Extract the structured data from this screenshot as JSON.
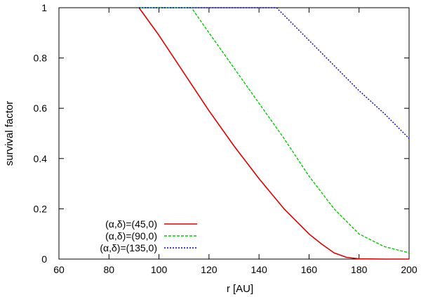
{
  "chart_data": {
    "type": "line",
    "title": "",
    "xlabel": "r [AU]",
    "ylabel": "survival factor",
    "xlim": [
      60,
      200
    ],
    "ylim": [
      0,
      1
    ],
    "xticks": [
      60,
      80,
      100,
      120,
      140,
      160,
      180,
      200
    ],
    "yticks": [
      0,
      0.2,
      0.4,
      0.6,
      0.8,
      1
    ],
    "ytick_labels": [
      "0",
      "0.2",
      "0.4",
      "0.6",
      "0.8",
      "1"
    ],
    "grid": false,
    "legend_position": "bottom-left",
    "series": [
      {
        "name": "(α,δ)=(45,0)",
        "color": "#e00000",
        "dash": "solid",
        "points": [
          [
            92,
            1
          ],
          [
            100,
            0.89
          ],
          [
            110,
            0.74
          ],
          [
            120,
            0.59
          ],
          [
            130,
            0.45
          ],
          [
            140,
            0.32
          ],
          [
            150,
            0.2
          ],
          [
            160,
            0.1
          ],
          [
            165,
            0.06
          ],
          [
            170,
            0.025
          ],
          [
            175,
            0.007
          ],
          [
            180,
            0.001
          ],
          [
            190,
            0
          ],
          [
            200,
            0
          ]
        ]
      },
      {
        "name": "(α,δ)=(90,0)",
        "color": "#00cc00",
        "dash": "dashed",
        "points": [
          [
            92,
            1
          ],
          [
            113,
            1
          ],
          [
            120,
            0.9
          ],
          [
            130,
            0.76
          ],
          [
            140,
            0.62
          ],
          [
            150,
            0.48
          ],
          [
            160,
            0.33
          ],
          [
            170,
            0.2
          ],
          [
            180,
            0.1
          ],
          [
            190,
            0.05
          ],
          [
            200,
            0.025
          ]
        ]
      },
      {
        "name": "(α,δ)=(135,0)",
        "color": "#0000cc",
        "dash": "dotted",
        "points": [
          [
            92,
            1
          ],
          [
            147,
            1
          ],
          [
            150,
            0.97
          ],
          [
            160,
            0.87
          ],
          [
            170,
            0.77
          ],
          [
            180,
            0.67
          ],
          [
            190,
            0.58
          ],
          [
            200,
            0.48
          ]
        ]
      }
    ]
  }
}
